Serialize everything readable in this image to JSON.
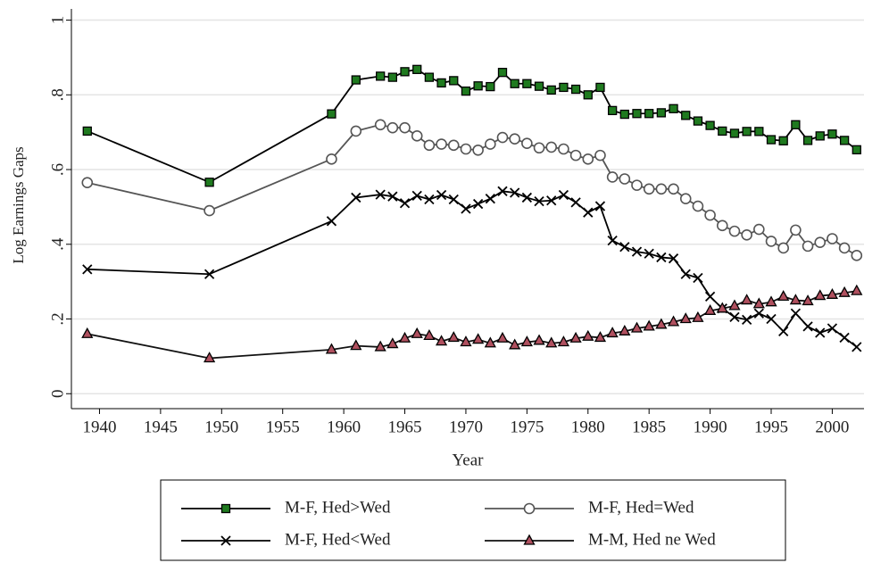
{
  "chart_data": {
    "type": "line",
    "y_label": "Log Earnings Gaps",
    "x_label": "Year",
    "x": [
      1939,
      1949,
      1959,
      1961,
      1963,
      1964,
      1965,
      1966,
      1967,
      1968,
      1969,
      1970,
      1971,
      1972,
      1973,
      1974,
      1975,
      1976,
      1977,
      1978,
      1979,
      1980,
      1981,
      1982,
      1983,
      1984,
      1985,
      1986,
      1987,
      1988,
      1989,
      1990,
      1991,
      1992,
      1993,
      1994,
      1995,
      1996,
      1997,
      1998,
      1999,
      2000,
      2001,
      2002
    ],
    "series": [
      {
        "name": "M-F, Hed>Wed",
        "color": "#000000",
        "marker": "square",
        "marker_fill": "#1f7a1f",
        "values": [
          0.703,
          0.566,
          0.749,
          0.84,
          0.85,
          0.847,
          0.862,
          0.868,
          0.847,
          0.832,
          0.838,
          0.81,
          0.824,
          0.822,
          0.86,
          0.83,
          0.83,
          0.823,
          0.813,
          0.82,
          0.815,
          0.8,
          0.82,
          0.758,
          0.748,
          0.75,
          0.75,
          0.752,
          0.763,
          0.745,
          0.73,
          0.718,
          0.703,
          0.697,
          0.702,
          0.702,
          0.68,
          0.677,
          0.72,
          0.678,
          0.69,
          0.695,
          0.678,
          0.653
        ]
      },
      {
        "name": "M-F, Hed=Wed",
        "color": "#555555",
        "marker": "circle",
        "marker_fill": "none",
        "values": [
          0.565,
          0.49,
          0.628,
          0.703,
          0.72,
          0.712,
          0.712,
          0.69,
          0.665,
          0.668,
          0.665,
          0.655,
          0.652,
          0.668,
          0.686,
          0.682,
          0.67,
          0.658,
          0.66,
          0.655,
          0.638,
          0.628,
          0.638,
          0.58,
          0.575,
          0.558,
          0.548,
          0.548,
          0.548,
          0.522,
          0.502,
          0.478,
          0.45,
          0.435,
          0.425,
          0.44,
          0.408,
          0.39,
          0.438,
          0.395,
          0.405,
          0.415,
          0.39,
          0.37
        ]
      },
      {
        "name": "M-F, Hed<Wed",
        "color": "#000000",
        "marker": "x",
        "marker_fill": "none",
        "values": [
          0.333,
          0.32,
          0.462,
          0.525,
          0.533,
          0.528,
          0.51,
          0.53,
          0.52,
          0.532,
          0.52,
          0.495,
          0.508,
          0.522,
          0.542,
          0.538,
          0.525,
          0.515,
          0.517,
          0.532,
          0.512,
          0.485,
          0.502,
          0.41,
          0.393,
          0.38,
          0.375,
          0.365,
          0.362,
          0.32,
          0.31,
          0.26,
          0.228,
          0.205,
          0.198,
          0.215,
          0.2,
          0.167,
          0.215,
          0.18,
          0.163,
          0.175,
          0.15,
          0.125
        ]
      },
      {
        "name": "M-M, Hed ne Wed",
        "color": "#111111",
        "marker": "triangle",
        "marker_fill": "#b0505f",
        "values": [
          0.16,
          0.095,
          0.118,
          0.128,
          0.125,
          0.133,
          0.148,
          0.16,
          0.155,
          0.14,
          0.15,
          0.138,
          0.145,
          0.135,
          0.148,
          0.13,
          0.138,
          0.142,
          0.135,
          0.138,
          0.148,
          0.153,
          0.15,
          0.162,
          0.167,
          0.175,
          0.18,
          0.185,
          0.192,
          0.2,
          0.203,
          0.222,
          0.228,
          0.235,
          0.25,
          0.24,
          0.245,
          0.26,
          0.25,
          0.248,
          0.262,
          0.265,
          0.27,
          0.275
        ]
      }
    ],
    "xlim": [
      1937.7,
      2002.6
    ],
    "xticks": [
      1940,
      1945,
      1950,
      1955,
      1960,
      1965,
      1970,
      1975,
      1980,
      1985,
      1990,
      1995,
      2000
    ],
    "ylim": [
      -0.04,
      1.03
    ],
    "yticks": [
      0,
      {
        "value": 0.2,
        "label": ".2"
      },
      {
        "value": 0.4,
        "label": ".4"
      },
      {
        "value": 0.6,
        "label": ".6"
      },
      {
        "value": 0.8,
        "label": ".8"
      },
      1
    ],
    "grid": true,
    "grid_color": "#e4e4e4"
  }
}
